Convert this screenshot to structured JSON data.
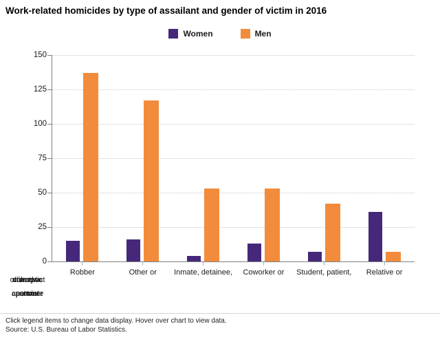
{
  "title": "Work-related homicides by type of assailant and gender of victim in 2016",
  "legend": {
    "items": [
      {
        "label": "Women",
        "color": "#45287A"
      },
      {
        "label": "Men",
        "color": "#F28C3C"
      }
    ]
  },
  "chart_data": {
    "type": "bar",
    "categories": [
      "Robber",
      "Other or",
      "Inmate, detainee,",
      "Coworker or",
      "Student, patient,",
      "Relative or"
    ],
    "series": [
      {
        "name": "Women",
        "color": "#45287A",
        "values": [
          15,
          16,
          4,
          13,
          7,
          36
        ]
      },
      {
        "name": "Men",
        "color": "#F28C3C",
        "values": [
          137,
          117,
          53,
          53,
          42,
          7
        ]
      }
    ],
    "title": "Work-related homicides by type of assailant and gender of victim in 2016",
    "xlabel": "",
    "ylabel": "",
    "ylim": [
      0,
      150
    ],
    "yticks": [
      0,
      25,
      50,
      75,
      100,
      125,
      150
    ],
    "grid": "horizontal-dotted",
    "legend_position": "top-center",
    "clipped_label_fragments": {
      "row1": [
        "unknown",
        "or suspect",
        "work",
        "client, or",
        "domestic"
      ],
      "row2": [
        "person",
        "associate",
        "customer",
        "partner"
      ]
    }
  },
  "footer": {
    "line1": "Click legend items to change data display. Hover over chart to view data.",
    "line2": "Source: U.S. Bureau of Labor Statistics."
  }
}
